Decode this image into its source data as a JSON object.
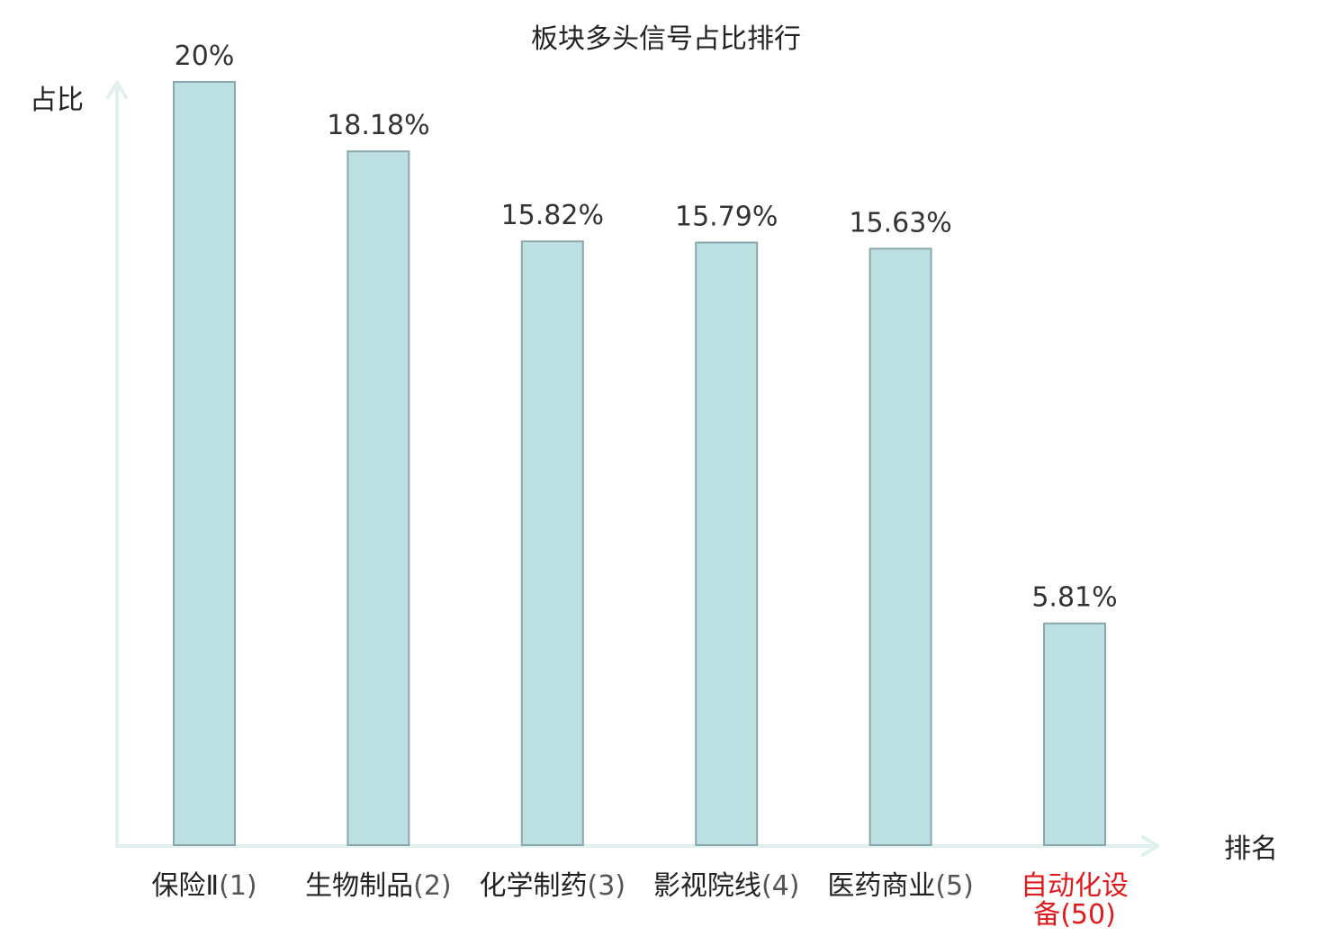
{
  "chart_data": {
    "type": "bar",
    "title": "板块多头信号占比排行",
    "xlabel": "排名",
    "ylabel": "占比",
    "categories": [
      {
        "name": "保险Ⅱ",
        "rank": "(1)",
        "highlight": false
      },
      {
        "name": "生物制品",
        "rank": "(2)",
        "highlight": false
      },
      {
        "name": "化学制药",
        "rank": "(3)",
        "highlight": false
      },
      {
        "name": "影视院线",
        "rank": "(4)",
        "highlight": false
      },
      {
        "name": "医药商业",
        "rank": "(5)",
        "highlight": false
      },
      {
        "name": "自动化设备",
        "rank": "(50)",
        "highlight": true
      }
    ],
    "values": [
      20,
      18.18,
      15.82,
      15.79,
      15.63,
      5.81
    ],
    "value_labels": [
      "20%",
      "18.18%",
      "15.82%",
      "15.79%",
      "15.63%",
      "5.81%"
    ],
    "ylim": [
      0,
      20
    ],
    "grid": false,
    "colors": {
      "bar_fill": "#bce0e2",
      "bar_stroke": "#8aa8ab",
      "axis": "#dff0ee",
      "highlight_text": "#e0191c",
      "text": "#222222"
    }
  }
}
